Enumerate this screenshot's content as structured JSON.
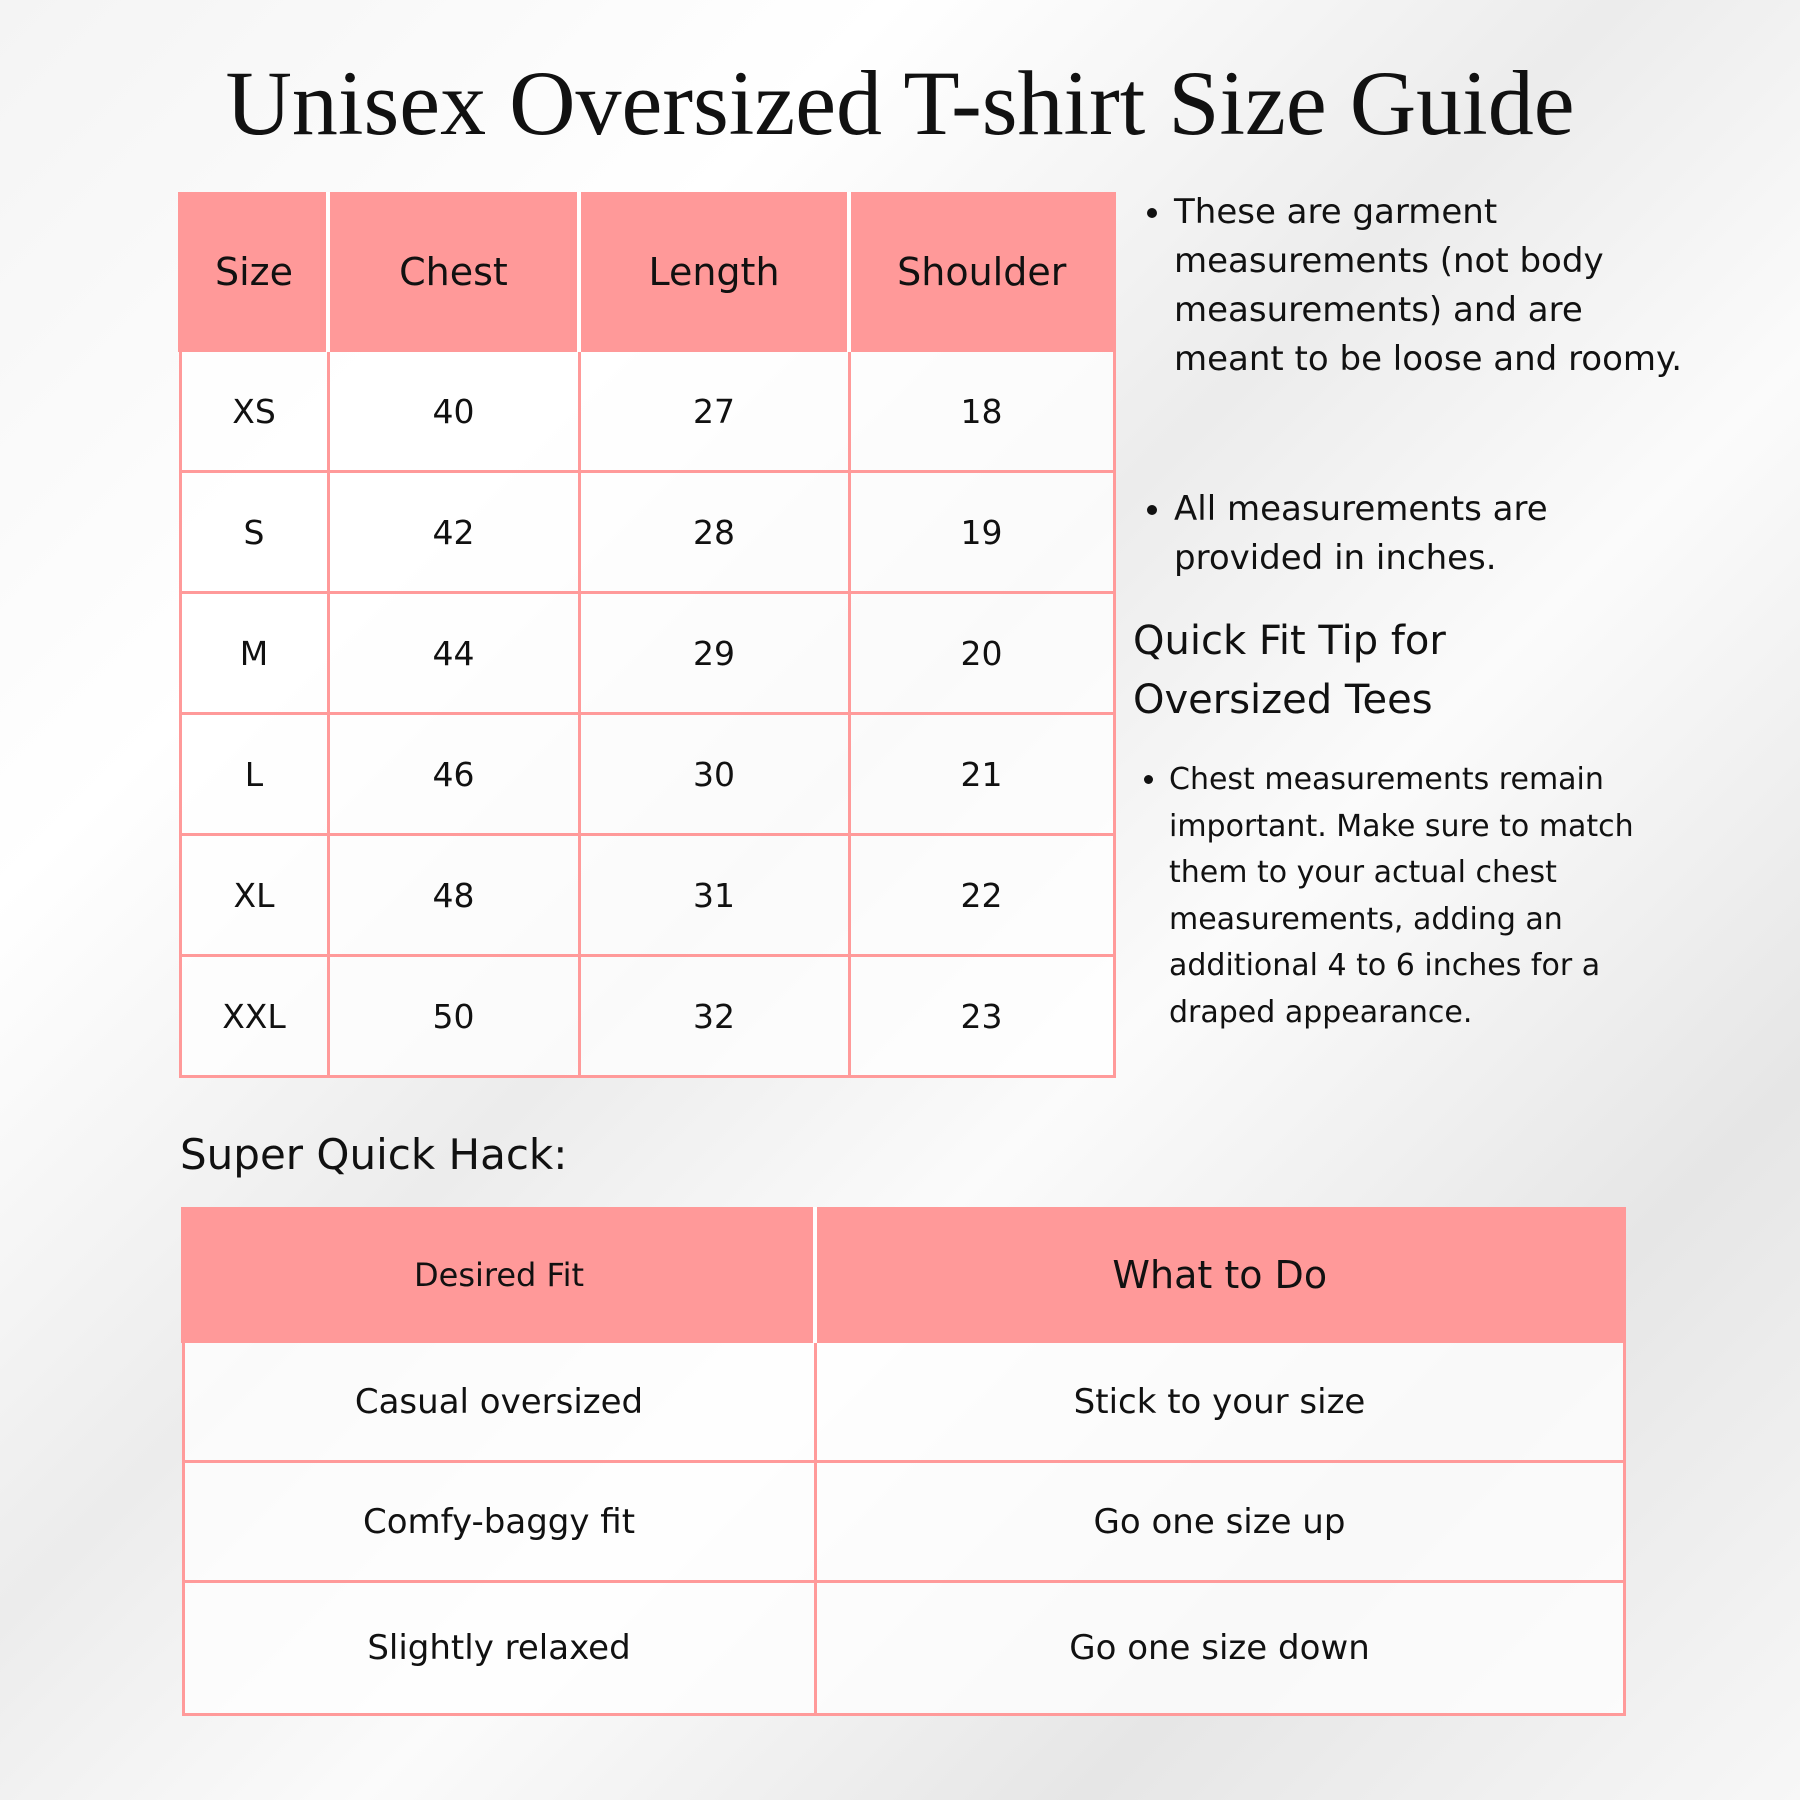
{
  "title": "Unisex Oversized T-shirt Size Guide",
  "size_table": {
    "headers": [
      "Size",
      "Chest",
      "Length",
      "Shoulder"
    ],
    "rows": [
      [
        "XS",
        "40",
        "27",
        "18"
      ],
      [
        "S",
        "42",
        "28",
        "19"
      ],
      [
        "M",
        "44",
        "29",
        "20"
      ],
      [
        "L",
        "46",
        "30",
        "21"
      ],
      [
        "XL",
        "48",
        "31",
        "22"
      ],
      [
        "XXL",
        "50",
        "32",
        "23"
      ]
    ]
  },
  "notes": [
    "These are garment measurements (not body measurements) and are meant to be loose and roomy.",
    "All measurements are provided in inches."
  ],
  "tip": {
    "heading": "Quick Fit Tip for Oversized Tees",
    "text": "Chest measurements remain important. Make sure to match them to your actual chest measurements, adding an additional 4 to 6 inches for a draped appearance."
  },
  "hack": {
    "heading": "Super Quick Hack:",
    "headers": [
      "Desired Fit",
      "What to Do"
    ],
    "rows": [
      [
        "Casual oversized",
        "Stick to your size"
      ],
      [
        "Comfy-baggy fit",
        "Go one size up"
      ],
      [
        "Slightly relaxed",
        "Go one size down"
      ]
    ]
  },
  "colors": {
    "accent": "#ff9999",
    "text": "#111111"
  }
}
